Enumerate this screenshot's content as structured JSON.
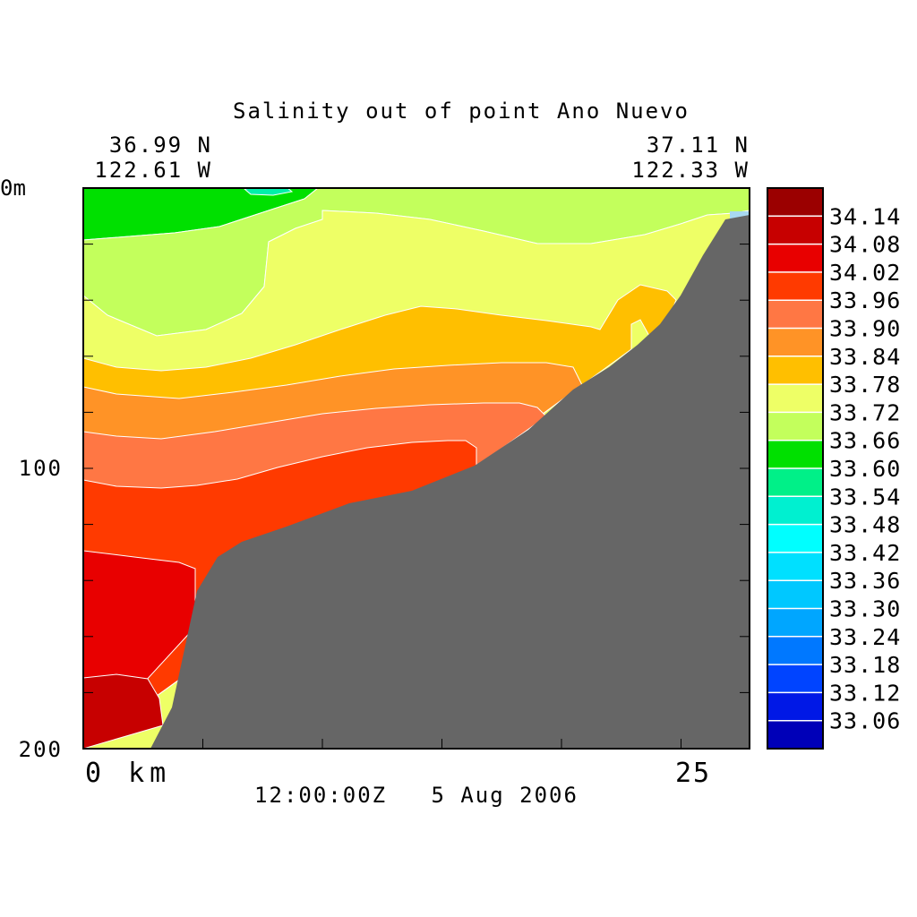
{
  "chart_data": {
    "type": "heatmap",
    "title": "Salinity out of point Ano Nuevo",
    "start_point": {
      "lat": "36.99 N",
      "lon": "122.61 W"
    },
    "end_point": {
      "lat": "37.11 N",
      "lon": "122.33 W"
    },
    "y_axis": {
      "top_label": "0m",
      "tick_labels": [
        "100",
        "200"
      ],
      "range": [
        0,
        200
      ],
      "inverted": true
    },
    "x_axis": {
      "start_label": "0 km",
      "end_label": "25",
      "range": [
        0,
        27.9
      ]
    },
    "timestamp": "12:00:00Z   5 Aug 2006",
    "colorbar": {
      "levels": [
        "34.14",
        "34.08",
        "34.02",
        "33.96",
        "33.90",
        "33.84",
        "33.78",
        "33.72",
        "33.66",
        "33.60",
        "33.54",
        "33.48",
        "33.42",
        "33.36",
        "33.30",
        "33.24",
        "33.18",
        "33.12",
        "33.06"
      ],
      "colors": [
        "#9b0000",
        "#c70000",
        "#e80000",
        "#ff3a00",
        "#ff7744",
        "#ff9326",
        "#ffbf00",
        "#eeff66",
        "#c3ff5c",
        "#00e000",
        "#00f088",
        "#00f0d0",
        "#00ffff",
        "#00e0ff",
        "#00c8ff",
        "#00a6ff",
        "#0078ff",
        "#0044ff",
        "#0018e6",
        "#0000b8"
      ]
    },
    "bathymetry_color": "#666666",
    "bands": [
      {
        "value_range": "33.60-33.66",
        "color": "#00e000"
      },
      {
        "value_range": "33.66-33.72",
        "color": "#c3ff5c"
      },
      {
        "value_range": "33.72-33.78",
        "color": "#eeff66"
      },
      {
        "value_range": "33.78-33.84",
        "color": "#ffbf00"
      },
      {
        "value_range": "33.84-33.90",
        "color": "#ff9326"
      },
      {
        "value_range": "33.90-33.96",
        "color": "#ff7744"
      },
      {
        "value_range": "33.96-34.02",
        "color": "#ff3a00"
      },
      {
        "value_range": "34.02-34.08",
        "color": "#e80000"
      },
      {
        "value_range": "34.08-34.14",
        "color": "#c70000"
      }
    ]
  }
}
